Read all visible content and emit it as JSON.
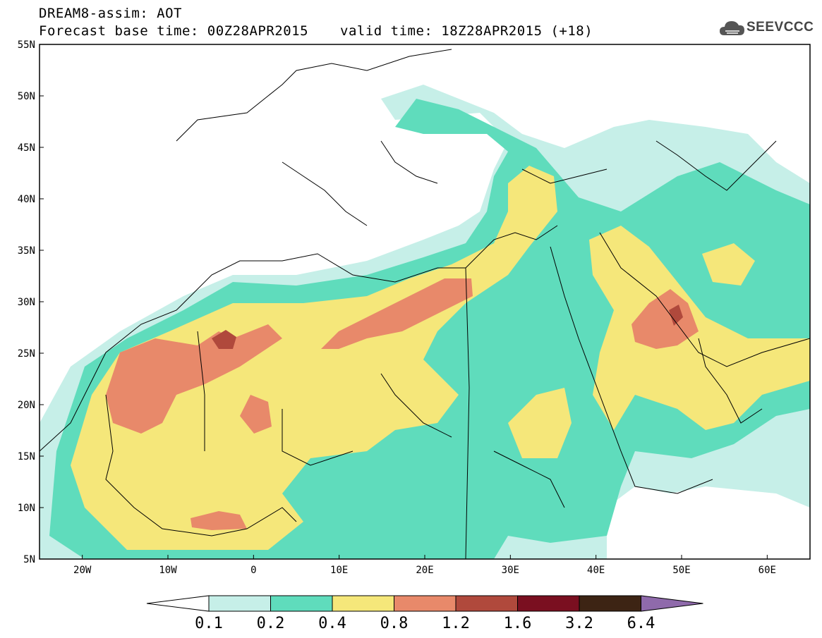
{
  "header": {
    "title_line1": "DREAM8-assim: AOT",
    "title_line2": "Forecast base time: 00Z28APR2015",
    "valid_time": "valid time: 18Z28APR2015 (+18)",
    "logo_text": "SEEVCCC"
  },
  "map": {
    "lat_labels": [
      "55N",
      "50N",
      "45N",
      "40N",
      "35N",
      "30N",
      "25N",
      "20N",
      "15N",
      "10N",
      "5N"
    ],
    "lon_labels": [
      "20W",
      "10W",
      "0",
      "10E",
      "20E",
      "30E",
      "40E",
      "50E",
      "60E"
    ],
    "lon_range": [
      -25,
      65
    ],
    "lat_range": [
      5,
      55
    ]
  },
  "colorbar": {
    "levels": [
      "0.1",
      "0.2",
      "0.4",
      "0.8",
      "1.2",
      "1.6",
      "3.2",
      "6.4"
    ],
    "colors": [
      "#ffffff",
      "#c6efe8",
      "#5fdcbc",
      "#f5e77a",
      "#e8896a",
      "#b0493c",
      "#7a0f20",
      "#3d2414",
      "#8f6aab"
    ]
  }
}
